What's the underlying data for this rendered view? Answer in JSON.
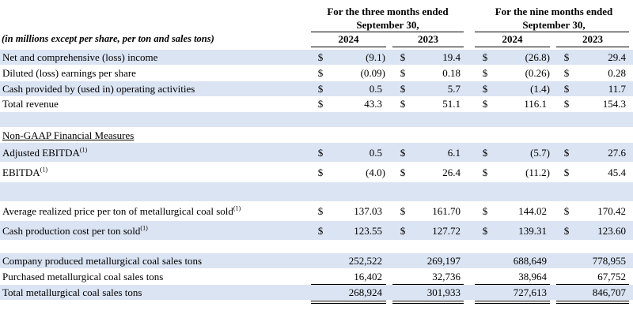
{
  "headers": {
    "three_months": [
      "For the three months ended",
      "September 30,"
    ],
    "nine_months": [
      "For the nine months ended",
      "September 30,"
    ],
    "units": "(in millions except per share, per ton and sales tons)",
    "years": [
      "2024",
      "2023",
      "2024",
      "2023"
    ]
  },
  "rows": [
    {
      "label": "Net and comprehensive (loss) income",
      "sup": "",
      "cur": [
        "$",
        "$",
        "$",
        "$"
      ],
      "values": [
        "(9.1)",
        "19.4",
        "(26.8)",
        "29.4"
      ],
      "shaded": true
    },
    {
      "label": "Diluted (loss) earnings per share",
      "sup": "",
      "cur": [
        "$",
        "$",
        "$",
        "$"
      ],
      "values": [
        "(0.09)",
        "0.18",
        "(0.26)",
        "0.28"
      ],
      "shaded": false
    },
    {
      "label": "Cash provided by (used in) operating activities",
      "sup": "",
      "cur": [
        "$",
        "$",
        "$",
        "$"
      ],
      "values": [
        "0.5",
        "5.7",
        "(1.4)",
        "11.7"
      ],
      "shaded": true
    },
    {
      "label": "Total revenue",
      "sup": "",
      "cur": [
        "$",
        "$",
        "$",
        "$"
      ],
      "values": [
        "43.3",
        "51.1",
        "116.1",
        "154.3"
      ],
      "shaded": false
    },
    {
      "label": "",
      "sup": "",
      "cur": [
        "",
        "",
        "",
        ""
      ],
      "values": [
        "",
        "",
        "",
        ""
      ],
      "shaded": true
    },
    {
      "label": "Non-GAAP Financial Measures",
      "sup": "",
      "cur": [
        "",
        "",
        "",
        ""
      ],
      "values": [
        "",
        "",
        "",
        ""
      ],
      "shaded": false,
      "underline": true
    },
    {
      "label": "Adjusted EBITDA",
      "sup": "(1)",
      "cur": [
        "$",
        "$",
        "$",
        "$"
      ],
      "values": [
        "0.5",
        "6.1",
        "(5.7)",
        "27.6"
      ],
      "shaded": true
    },
    {
      "label": "EBITDA",
      "sup": "(1)",
      "cur": [
        "$",
        "$",
        "$",
        "$"
      ],
      "values": [
        "(4.0)",
        "26.4",
        "(11.2)",
        "45.4"
      ],
      "shaded": false
    },
    {
      "label": "",
      "sup": "",
      "cur": [
        "",
        "",
        "",
        ""
      ],
      "values": [
        "",
        "",
        "",
        ""
      ],
      "shaded": true
    },
    {
      "label": "Average realized price per ton of metallurgical coal sold",
      "sup": "(1)",
      "cur": [
        "$",
        "$",
        "$",
        "$"
      ],
      "values": [
        "137.03",
        "161.70",
        "144.02",
        "170.42"
      ],
      "shaded": false
    },
    {
      "label": "Cash production cost per ton sold",
      "sup": "(1)",
      "cur": [
        "$",
        "$",
        "$",
        "$"
      ],
      "values": [
        "123.55",
        "127.72",
        "139.31",
        "123.60"
      ],
      "shaded": true
    },
    {
      "label": "",
      "sup": "",
      "cur": [
        "",
        "",
        "",
        ""
      ],
      "values": [
        "",
        "",
        "",
        ""
      ],
      "shaded": false
    },
    {
      "label": "Company produced metallurgical coal sales tons",
      "sup": "",
      "cur": [
        "",
        "",
        "",
        ""
      ],
      "values": [
        "252,522",
        "269,197",
        "688,649",
        "778,955"
      ],
      "shaded": true
    },
    {
      "label": "Purchased metallurgical coal sales tons",
      "sup": "",
      "cur": [
        "",
        "",
        "",
        ""
      ],
      "values": [
        "16,402",
        "32,736",
        "38,964",
        "67,752"
      ],
      "shaded": false
    },
    {
      "label": "Total metallurgical coal sales tons",
      "sup": "",
      "cur": [
        "",
        "",
        "",
        ""
      ],
      "values": [
        "268,924",
        "301,933",
        "727,613",
        "846,707"
      ],
      "shaded": true
    }
  ]
}
